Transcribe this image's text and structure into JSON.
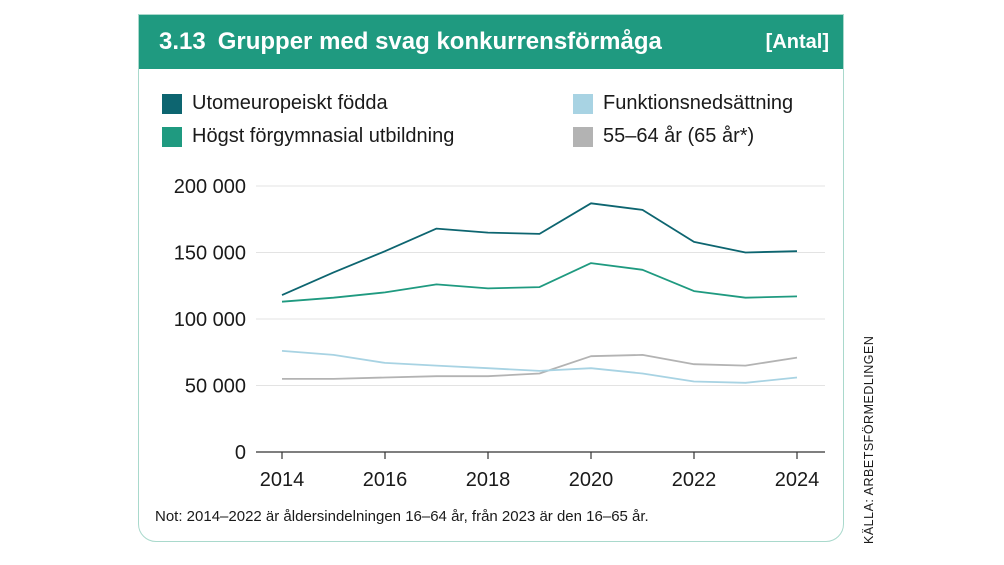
{
  "header": {
    "number": "3.13",
    "title": "Grupper med svag konkurrensförmåga",
    "unit": "[Antal]"
  },
  "legend": [
    {
      "label": "Utomeuropeiskt födda",
      "color": "#0d6570"
    },
    {
      "label": "Högst förgymnasial utbildning",
      "color": "#1f9a80"
    },
    {
      "label": "Funktionsnedsättning",
      "color": "#a8d3e3"
    },
    {
      "label": "55–64 år (65 år*)",
      "color": "#b3b3b3"
    }
  ],
  "note": "Not: 2014–2022 är åldersindelningen 16–64 år, från 2023 är den 16–65 år.",
  "source": "KÄLLA: ARBETSFÖRMEDLINGEN",
  "chart_data": {
    "type": "line",
    "x": [
      2014,
      2015,
      2016,
      2017,
      2018,
      2019,
      2020,
      2021,
      2022,
      2023,
      2024
    ],
    "xticks": [
      "2014",
      "2016",
      "2018",
      "2020",
      "2022",
      "2024"
    ],
    "yticks": [
      "0",
      "50 000",
      "100 000",
      "150 000",
      "200 000"
    ],
    "ylim": [
      0,
      200000
    ],
    "xlim": [
      2014,
      2024
    ],
    "grid": true,
    "legend_position": "top",
    "series": [
      {
        "name": "Utomeuropeiskt födda",
        "color": "#0d6570",
        "values": [
          118000,
          135000,
          151000,
          168000,
          165000,
          164000,
          187000,
          182000,
          158000,
          150000,
          151000
        ]
      },
      {
        "name": "Högst förgymnasial utbildning",
        "color": "#1f9a80",
        "values": [
          113000,
          116000,
          120000,
          126000,
          123000,
          124000,
          142000,
          137000,
          121000,
          116000,
          117000
        ]
      },
      {
        "name": "Funktionsnedsättning",
        "color": "#a8d3e3",
        "values": [
          76000,
          73000,
          67000,
          65000,
          63000,
          61000,
          63000,
          59000,
          53000,
          52000,
          56000
        ]
      },
      {
        "name": "55–64 år (65 år*)",
        "color": "#b3b3b3",
        "values": [
          55000,
          55000,
          56000,
          57000,
          57000,
          59000,
          72000,
          73000,
          66000,
          65000,
          71000
        ]
      }
    ]
  }
}
